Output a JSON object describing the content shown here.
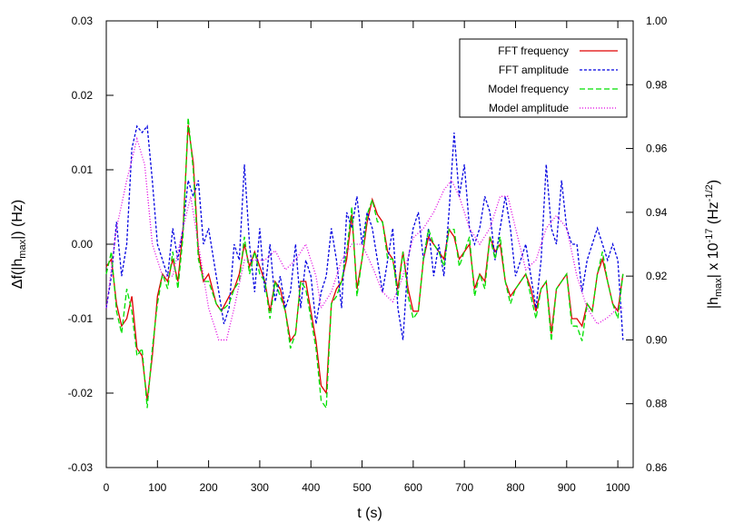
{
  "chart_data": {
    "type": "line",
    "xlabel": "t (s)",
    "ylabel": [
      "Δf(|h",
      "max",
      "|) (Hz)"
    ],
    "y2label": [
      "|h",
      "max",
      "| x 10",
      "-17",
      " (Hz",
      "-1/2",
      ")"
    ],
    "xlim": [
      0,
      1030
    ],
    "xticks": [
      0,
      100,
      200,
      300,
      400,
      500,
      600,
      700,
      800,
      900,
      1000
    ],
    "ylim": [
      -0.03,
      0.03
    ],
    "yticks": [
      -0.03,
      -0.02,
      -0.01,
      {
        "value": 0,
        "label": "0.00"
      },
      0.01,
      0.02,
      0.03
    ],
    "y2lim": [
      0.86,
      1.0
    ],
    "y2ticks": [
      0.86,
      0.88,
      {
        "value": 0.9,
        "label": "0.90"
      },
      0.92,
      0.94,
      0.96,
      0.98,
      {
        "value": 1.0,
        "label": "1.00"
      }
    ],
    "legend": "upper right",
    "series": [
      {
        "name": "FFT frequency",
        "color": "#e00000",
        "dash": "solid",
        "x": [
          0,
          10,
          20,
          30,
          40,
          50,
          60,
          70,
          80,
          90,
          100,
          110,
          120,
          130,
          140,
          150,
          160,
          170,
          180,
          190,
          200,
          215,
          225,
          240,
          250,
          260,
          270,
          280,
          290,
          300,
          310,
          320,
          330,
          340,
          350,
          360,
          370,
          380,
          390,
          400,
          410,
          420,
          430,
          440,
          450,
          460,
          470,
          480,
          490,
          500,
          510,
          520,
          530,
          540,
          550,
          560,
          570,
          580,
          590,
          600,
          610,
          620,
          630,
          640,
          650,
          660,
          670,
          680,
          690,
          700,
          710,
          720,
          730,
          740,
          750,
          760,
          770,
          780,
          790,
          800,
          810,
          820,
          830,
          840,
          850,
          860,
          870,
          880,
          890,
          900,
          910,
          920,
          930,
          940,
          950,
          960,
          970,
          980,
          990,
          1000,
          1010
        ],
        "values": [
          -0.003,
          -0.002,
          -0.008,
          -0.011,
          -0.01,
          -0.007,
          -0.014,
          -0.015,
          -0.021,
          -0.015,
          -0.007,
          -0.004,
          -0.005,
          -0.002,
          -0.005,
          0.002,
          0.016,
          0.011,
          -0.001,
          -0.005,
          -0.004,
          -0.008,
          -0.009,
          -0.007,
          -0.006,
          -0.004,
          0.0,
          -0.003,
          -0.001,
          -0.003,
          -0.005,
          -0.009,
          -0.005,
          -0.006,
          -0.009,
          -0.013,
          -0.012,
          -0.005,
          -0.005,
          -0.009,
          -0.013,
          -0.019,
          -0.02,
          -0.008,
          -0.006,
          -0.005,
          -0.002,
          0.004,
          -0.006,
          -0.002,
          0.003,
          0.006,
          0.004,
          0.003,
          -0.001,
          -0.002,
          -0.006,
          -0.001,
          -0.006,
          -0.009,
          -0.009,
          -0.002,
          0.001,
          0.0,
          -0.001,
          -0.002,
          0.002,
          0.001,
          -0.002,
          -0.001,
          0.0,
          -0.006,
          -0.004,
          -0.005,
          0.001,
          -0.001,
          0.0,
          -0.005,
          -0.007,
          -0.006,
          -0.005,
          -0.004,
          -0.006,
          -0.009,
          -0.006,
          -0.005,
          -0.012,
          -0.006,
          -0.005,
          -0.004,
          -0.01,
          -0.01,
          -0.011,
          -0.008,
          -0.009,
          -0.004,
          -0.002,
          -0.005,
          -0.008,
          -0.009,
          -0.004
        ]
      },
      {
        "name": "FFT amplitude",
        "color": "#0000e0",
        "dash": "3,2",
        "axis": "y2",
        "x": [
          0,
          10,
          20,
          30,
          40,
          50,
          60,
          70,
          80,
          90,
          100,
          110,
          120,
          130,
          140,
          150,
          160,
          170,
          180,
          190,
          200,
          210,
          220,
          230,
          240,
          250,
          260,
          270,
          280,
          290,
          300,
          310,
          320,
          330,
          340,
          350,
          360,
          370,
          380,
          390,
          400,
          410,
          420,
          430,
          440,
          450,
          460,
          470,
          480,
          490,
          500,
          510,
          520,
          530,
          540,
          550,
          560,
          570,
          580,
          590,
          600,
          610,
          620,
          630,
          640,
          650,
          660,
          670,
          680,
          690,
          700,
          710,
          720,
          730,
          740,
          750,
          760,
          770,
          780,
          790,
          800,
          810,
          820,
          830,
          840,
          850,
          860,
          870,
          880,
          890,
          900,
          910,
          920,
          930,
          940,
          950,
          960,
          970,
          980,
          990,
          1000,
          1010
        ],
        "values": [
          0.91,
          0.92,
          0.937,
          0.92,
          0.93,
          0.96,
          0.967,
          0.965,
          0.967,
          0.95,
          0.93,
          0.925,
          0.92,
          0.935,
          0.925,
          0.935,
          0.95,
          0.945,
          0.95,
          0.93,
          0.935,
          0.925,
          0.915,
          0.905,
          0.91,
          0.93,
          0.925,
          0.955,
          0.93,
          0.915,
          0.935,
          0.915,
          0.93,
          0.912,
          0.92,
          0.91,
          0.915,
          0.93,
          0.91,
          0.925,
          0.92,
          0.905,
          0.915,
          0.92,
          0.935,
          0.925,
          0.91,
          0.94,
          0.935,
          0.945,
          0.93,
          0.94,
          0.935,
          0.925,
          0.915,
          0.925,
          0.935,
          0.91,
          0.9,
          0.925,
          0.935,
          0.94,
          0.925,
          0.935,
          0.92,
          0.93,
          0.92,
          0.94,
          0.965,
          0.945,
          0.955,
          0.935,
          0.93,
          0.935,
          0.945,
          0.94,
          0.925,
          0.935,
          0.945,
          0.935,
          0.92,
          0.925,
          0.93,
          0.92,
          0.91,
          0.925,
          0.955,
          0.935,
          0.93,
          0.95,
          0.935,
          0.93,
          0.93,
          0.915,
          0.925,
          0.93,
          0.935,
          0.93,
          0.925,
          0.93,
          0.925,
          0.9
        ]
      },
      {
        "name": "Model frequency",
        "color": "#00e000",
        "dash": "6,3",
        "x": [
          0,
          10,
          20,
          30,
          40,
          50,
          60,
          70,
          80,
          90,
          100,
          110,
          120,
          130,
          140,
          150,
          160,
          170,
          180,
          190,
          200,
          215,
          225,
          240,
          250,
          260,
          270,
          280,
          290,
          300,
          310,
          320,
          330,
          340,
          350,
          360,
          370,
          380,
          390,
          400,
          410,
          420,
          430,
          440,
          450,
          460,
          470,
          480,
          490,
          500,
          510,
          520,
          530,
          540,
          550,
          560,
          570,
          580,
          590,
          600,
          610,
          620,
          630,
          640,
          650,
          660,
          670,
          680,
          690,
          700,
          710,
          720,
          730,
          740,
          750,
          760,
          770,
          780,
          790,
          800,
          810,
          820,
          830,
          840,
          850,
          860,
          870,
          880,
          890,
          900,
          910,
          920,
          930,
          940,
          950,
          960,
          970,
          980,
          990,
          1000,
          1010
        ],
        "values": [
          -0.004,
          -0.001,
          -0.009,
          -0.012,
          -0.006,
          -0.009,
          -0.015,
          -0.014,
          -0.022,
          -0.014,
          -0.008,
          -0.004,
          -0.006,
          -0.001,
          -0.006,
          0.001,
          0.017,
          0.01,
          -0.002,
          -0.005,
          -0.005,
          -0.008,
          -0.009,
          -0.008,
          -0.006,
          -0.005,
          0.001,
          -0.004,
          -0.001,
          -0.004,
          -0.005,
          -0.01,
          -0.005,
          -0.007,
          -0.009,
          -0.014,
          -0.012,
          -0.005,
          -0.006,
          -0.01,
          -0.014,
          -0.021,
          -0.022,
          -0.008,
          -0.007,
          -0.005,
          -0.001,
          0.005,
          -0.007,
          -0.002,
          0.004,
          0.006,
          0.003,
          0.003,
          -0.002,
          -0.002,
          -0.007,
          -0.001,
          -0.007,
          -0.01,
          -0.009,
          -0.002,
          0.002,
          0.0,
          -0.001,
          -0.003,
          0.002,
          0.002,
          -0.003,
          -0.001,
          0.001,
          -0.007,
          -0.004,
          -0.006,
          0.001,
          -0.002,
          0.001,
          -0.005,
          -0.008,
          -0.006,
          -0.005,
          -0.004,
          -0.007,
          -0.01,
          -0.006,
          -0.005,
          -0.013,
          -0.006,
          -0.005,
          -0.004,
          -0.011,
          -0.011,
          -0.013,
          -0.008,
          -0.009,
          -0.004,
          -0.001,
          -0.005,
          -0.008,
          -0.01,
          -0.004
        ]
      },
      {
        "name": "Model amplitude",
        "color": "#e000e0",
        "dash": "1,2",
        "axis": "y2",
        "x": [
          0,
          20,
          40,
          60,
          75,
          90,
          110,
          130,
          150,
          165,
          180,
          200,
          220,
          235,
          250,
          270,
          290,
          310,
          330,
          350,
          370,
          390,
          410,
          420,
          440,
          460,
          480,
          500,
          520,
          540,
          560,
          580,
          600,
          620,
          640,
          660,
          675,
          690,
          710,
          730,
          750,
          770,
          785,
          800,
          820,
          840,
          860,
          880,
          900,
          920,
          940,
          960,
          980,
          1000,
          1010
        ],
        "values": [
          0.91,
          0.935,
          0.95,
          0.963,
          0.955,
          0.93,
          0.92,
          0.92,
          0.935,
          0.945,
          0.93,
          0.91,
          0.9,
          0.9,
          0.91,
          0.925,
          0.925,
          0.925,
          0.928,
          0.922,
          0.925,
          0.93,
          0.92,
          0.91,
          0.915,
          0.925,
          0.93,
          0.93,
          0.923,
          0.915,
          0.912,
          0.92,
          0.932,
          0.935,
          0.94,
          0.947,
          0.95,
          0.945,
          0.935,
          0.93,
          0.935,
          0.945,
          0.945,
          0.935,
          0.922,
          0.925,
          0.935,
          0.939,
          0.935,
          0.92,
          0.91,
          0.905,
          0.907,
          0.91,
          0.91
        ]
      }
    ]
  }
}
